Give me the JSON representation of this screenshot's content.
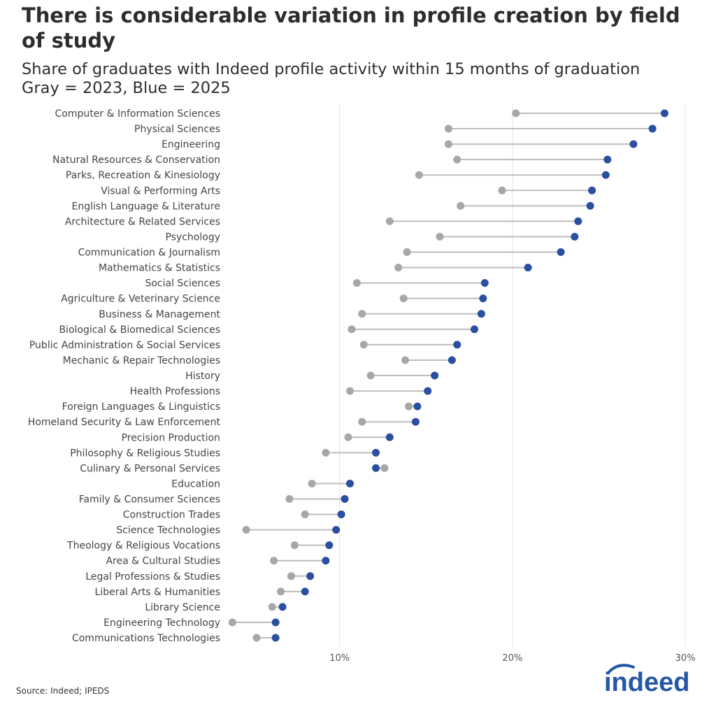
{
  "title": "There is considerable variation in profile creation by field of study",
  "subtitle_line1": "Share of graduates with Indeed profile activity within 15 months of graduation",
  "subtitle_line2": "Gray = 2023, Blue = 2025",
  "source": "Source: Indeed; IPEDS",
  "logo_text": "indeed",
  "chart_data": {
    "type": "dumbbell",
    "xlim": [
      3.3,
      30.4
    ],
    "x_ticks": [
      10,
      20,
      30
    ],
    "x_tick_labels": [
      "10%",
      "20%",
      "30%"
    ],
    "grid": "vertical",
    "colors": {
      "2023": "#a7a7a7",
      "2025": "#2a4ea0",
      "connector": "#bdbdbd"
    },
    "categories": [
      "Computer & Information Sciences",
      "Physical Sciences",
      "Engineering",
      "Natural Resources & Conservation",
      "Parks, Recreation & Kinesiology",
      "Visual & Performing Arts",
      "English Language & Literature",
      "Architecture & Related Services",
      "Psychology",
      "Communication & Journalism",
      "Mathematics & Statistics",
      "Social Sciences",
      "Agriculture & Veterinary Science",
      "Business & Management",
      "Biological & Biomedical Sciences",
      "Public Administration & Social Services",
      "Mechanic & Repair Technologies",
      "History",
      "Health Professions",
      "Foreign Languages & Linguistics",
      "Homeland Security & Law Enforcement",
      "Precision Production",
      "Philosophy & Religious Studies",
      "Culinary & Personal Services",
      "Education",
      "Family & Consumer Sciences",
      "Construction Trades",
      "Science Technologies",
      "Theology & Religious Vocations",
      "Area & Cultural Studies",
      "Legal Professions & Studies",
      "Liberal Arts & Humanities",
      "Library Science",
      "Engineering Technology",
      "Communications Technologies"
    ],
    "series": [
      {
        "name": "2023",
        "values": [
          20.2,
          16.3,
          16.3,
          16.8,
          14.6,
          19.4,
          17.0,
          12.9,
          15.8,
          13.9,
          13.4,
          11.0,
          13.7,
          11.3,
          10.7,
          11.4,
          13.8,
          11.8,
          10.6,
          14.0,
          11.3,
          10.5,
          9.2,
          12.6,
          8.4,
          7.1,
          8.0,
          4.6,
          7.4,
          6.2,
          7.2,
          6.6,
          6.1,
          3.8,
          5.2
        ]
      },
      {
        "name": "2025",
        "values": [
          28.8,
          28.1,
          27.0,
          25.5,
          25.4,
          24.6,
          24.5,
          23.8,
          23.6,
          22.8,
          20.9,
          18.4,
          18.3,
          18.2,
          17.8,
          16.8,
          16.5,
          15.5,
          15.1,
          14.5,
          14.4,
          12.9,
          12.1,
          12.1,
          10.6,
          10.3,
          10.1,
          9.8,
          9.4,
          9.2,
          8.3,
          8.0,
          6.7,
          6.3,
          6.3
        ]
      }
    ]
  }
}
